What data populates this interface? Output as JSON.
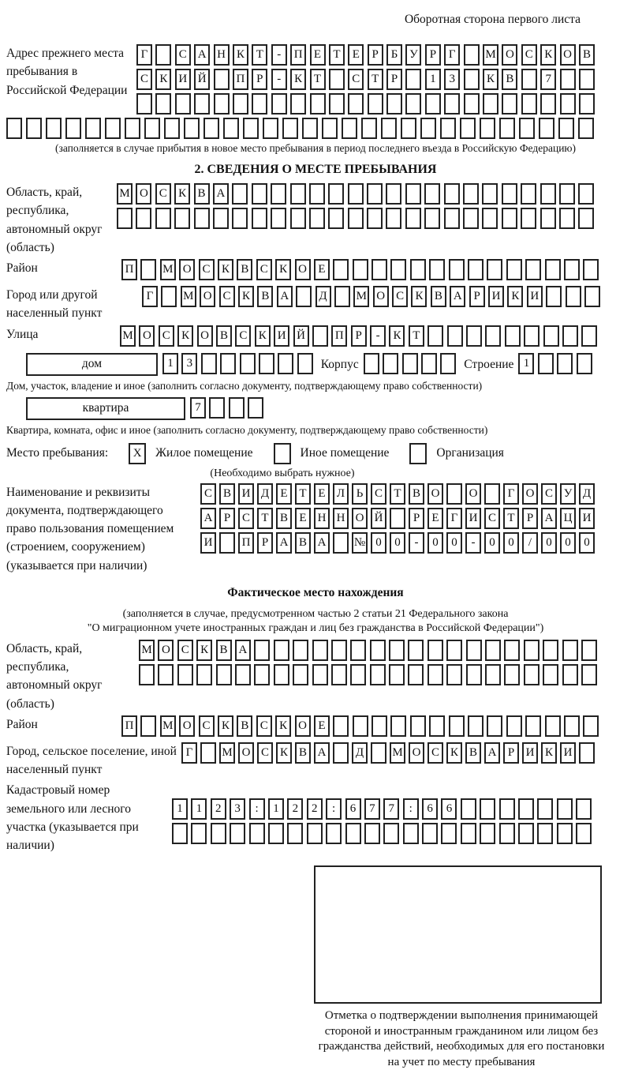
{
  "page": {
    "back_note": "Оборотная сторона первого листа"
  },
  "prev_address": {
    "label": "Адрес прежнего места пребывания в Российской Федерации",
    "row1": "Г САНКТ-ПЕТЕРБУРГ МОСКОВ",
    "row2": "СКИЙ ПР-КТ СТР 13 КВ 7",
    "row3": "",
    "row4": "",
    "note": "(заполняется в случае прибытия в новое место пребывания в период последнего въезда в Российскую Федерацию)"
  },
  "section2": {
    "title": "2. СВЕДЕНИЯ О МЕСТЕ ПРЕБЫВАНИЯ",
    "region": {
      "label": "Область, край, республика, автономный округ (область)",
      "row1": "МОСКВА",
      "row2": ""
    },
    "district": {
      "label": "Район",
      "row": "П МОСКВСКОЕ"
    },
    "city": {
      "label": "Город или другой населенный пункт",
      "row": "Г МОСКВА Д МОСКВАРИКИ"
    },
    "street": {
      "label": "Улица",
      "row": "МОСКОВСКИЙ ПР-КТ"
    },
    "house": {
      "label": "дом",
      "cells": "13",
      "korpus_label": "Корпус",
      "korpus_cells": "",
      "stroenie_label": "Строение",
      "stroenie_cells": "1",
      "note": "Дом, участок, владение и иное (заполнить согласно документу, подтверждающему право собственности)"
    },
    "apartment": {
      "label": "квартира",
      "cells": "7",
      "note": "Квартира, комната, офис и иное (заполнить согласно документу, подтверждающему право собственности)"
    },
    "stay_type": {
      "label": "Место пребывания:",
      "options": [
        {
          "label": "Жилое помещение",
          "mark": "X"
        },
        {
          "label": "Иное помещение",
          "mark": ""
        },
        {
          "label": "Организация",
          "mark": ""
        }
      ],
      "note": "(Необходимо выбрать нужное)"
    },
    "document": {
      "label": "Наименование и реквизиты документа, подтверждающего право пользования помещением (строением, сооружением) (указывается при наличии)",
      "row1": "СВИДЕТЕЛЬСТВО О ГОСУД",
      "row2": "АРСТВЕННОЙ РЕГИСТРАЦИ",
      "row3": "И ПРАВА №00-00-00/000"
    }
  },
  "actual": {
    "title": "Фактическое место нахождения",
    "note1": "(заполняется в случае, предусмотренном частью 2 статьи 21 Федерального закона",
    "note2": "\"О миграционном учете иностранных граждан и лиц без гражданства в Российской Федерации\")",
    "region": {
      "label": "Область, край, республика, автономный округ (область)",
      "row1": "МОСКВА",
      "row2": ""
    },
    "district": {
      "label": "Район",
      "row": "П МОСКВСКОЕ"
    },
    "city": {
      "label": "Город, сельское поселение, иной населенный пункт",
      "row": "Г МОСКВА Д МОСКВАРИКИ"
    },
    "cadastral": {
      "label": "Кадастровый номер земельного или лесного участка (указывается при наличии)",
      "row1": "1123:122:677:66",
      "row2": ""
    },
    "mark_note": "Отметка о подтверждении выполнения принимающей стороной и иностранным гражданином или лицом без гражданства действий, необходимых для его постановки на учет по месту пребывания"
  }
}
